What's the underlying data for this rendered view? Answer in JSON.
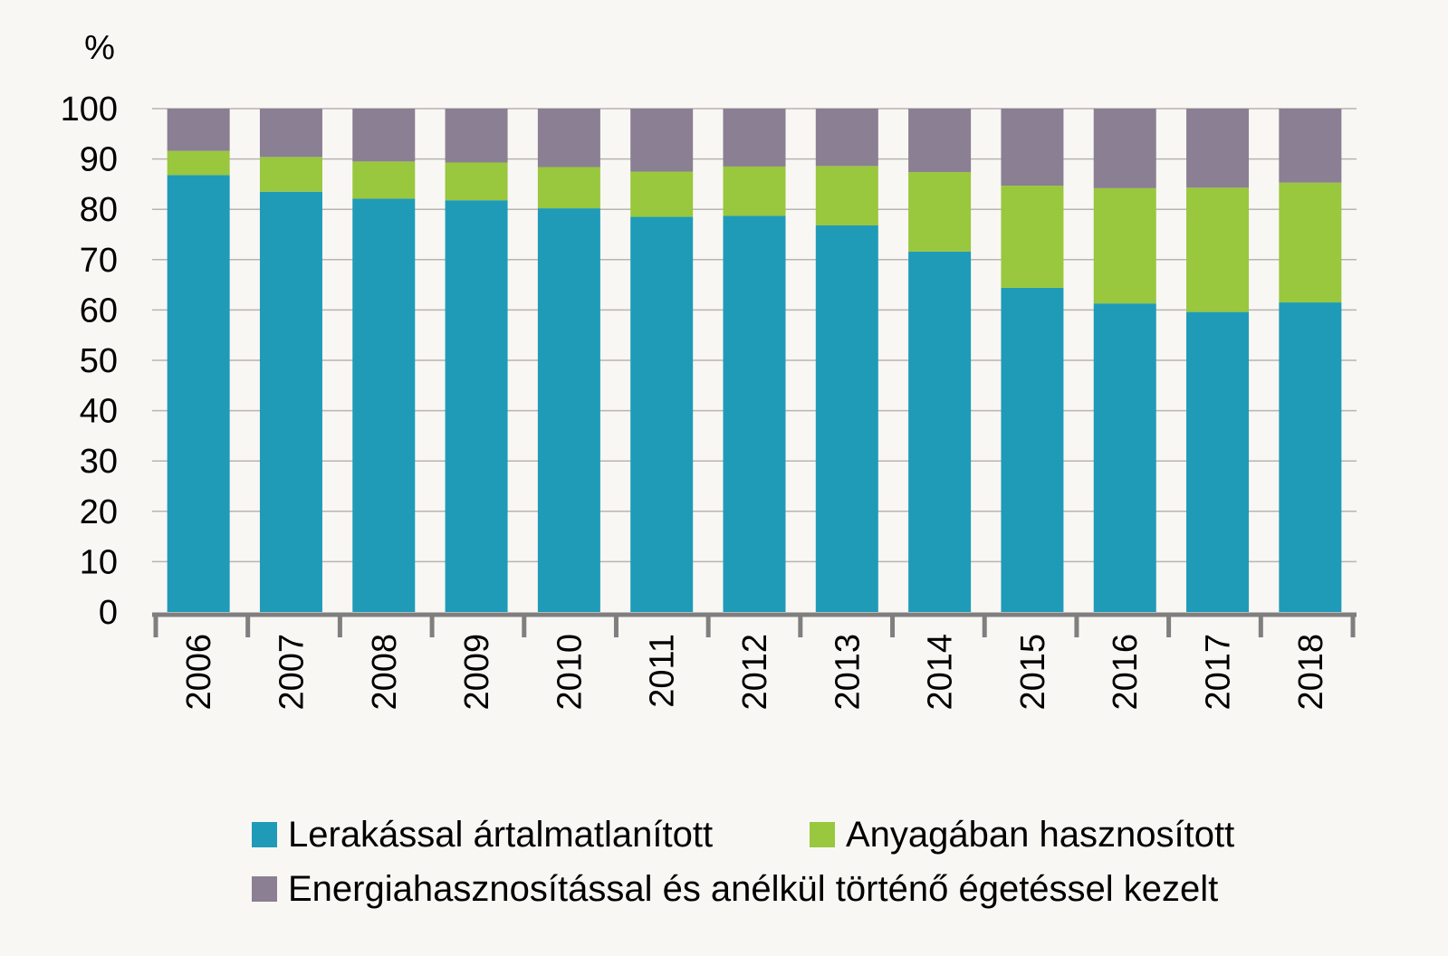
{
  "chart_data": {
    "type": "bar",
    "stacked": true,
    "unit_label": "%",
    "categories": [
      "2006",
      "2007",
      "2008",
      "2009",
      "2010",
      "2011",
      "2012",
      "2013",
      "2014",
      "2015",
      "2016",
      "2017",
      "2018"
    ],
    "series": [
      {
        "name": "Lerakással ártalmatlanított",
        "color": "#1f9bb8",
        "values": [
          86.8,
          83.5,
          82.1,
          81.8,
          80.2,
          78.5,
          78.7,
          76.8,
          71.6,
          64.4,
          61.3,
          59.6,
          61.5
        ]
      },
      {
        "name": "Anyagában hasznosított",
        "color": "#99c73d",
        "values": [
          4.8,
          6.9,
          7.4,
          7.5,
          8.2,
          9.0,
          9.8,
          11.8,
          15.8,
          20.3,
          22.9,
          24.7,
          23.8
        ]
      },
      {
        "name": "Energiahasznosítással és anélkül történő égetéssel kezelt",
        "color": "#8a7f93",
        "values": [
          8.4,
          9.6,
          10.5,
          10.7,
          11.6,
          12.5,
          11.5,
          11.4,
          12.6,
          15.3,
          15.8,
          15.7,
          14.7
        ]
      }
    ],
    "ylim": [
      0,
      100
    ],
    "yticks": [
      0,
      10,
      20,
      30,
      40,
      50,
      60,
      70,
      80,
      90,
      100
    ],
    "grid": true,
    "legend_position": "bottom"
  }
}
